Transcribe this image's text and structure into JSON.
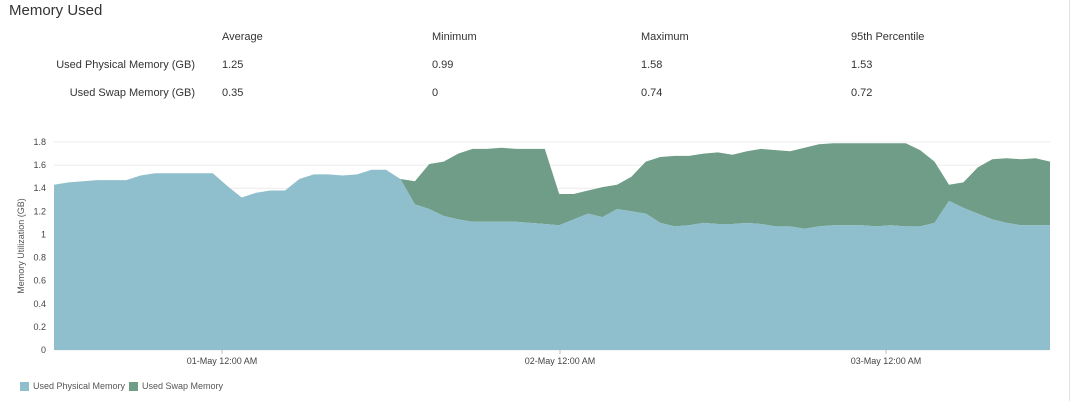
{
  "panel": {
    "title": "Memory Used"
  },
  "stats": {
    "columns": [
      "Average",
      "Minimum",
      "Maximum",
      "95th Percentile"
    ],
    "rows": [
      {
        "label": "Used Physical Memory (GB)",
        "values": [
          "1.25",
          "0.99",
          "1.58",
          "1.53"
        ]
      },
      {
        "label": "Used Swap Memory (GB)",
        "values": [
          "0.35",
          "0",
          "0.74",
          "0.72"
        ]
      }
    ]
  },
  "chart_data": {
    "type": "area",
    "stacked": true,
    "ylabel": "Memory Utilization (GB)",
    "xlabel": "",
    "ylim": [
      0,
      1.8
    ],
    "yticks": [
      "0",
      "0.2",
      "0.4",
      "0.6",
      "0.8",
      "1",
      "1.2",
      "1.4",
      "1.6",
      "1.8"
    ],
    "xticks": [
      "01-May 12:00 AM",
      "02-May 12:00 AM",
      "03-May 12:00 AM"
    ],
    "grid": true,
    "legend_position": "bottom-left",
    "x": [
      0,
      1,
      2,
      3,
      4,
      5,
      6,
      7,
      8,
      9,
      10,
      11,
      12,
      13,
      14,
      15,
      16,
      17,
      18,
      19,
      20,
      21,
      22,
      23,
      24,
      25,
      26,
      27,
      28,
      29,
      30,
      31,
      32,
      33,
      34,
      35,
      36,
      37,
      38,
      39,
      40,
      41,
      42,
      43,
      44,
      45,
      46,
      47,
      48,
      49,
      50,
      51,
      52,
      53,
      54,
      55,
      56,
      57,
      58,
      59,
      60,
      61,
      62,
      63,
      64,
      65,
      66,
      67,
      68,
      69
    ],
    "series": [
      {
        "name": "Used Physical Memory",
        "color": "#8fbfcc",
        "values": [
          1.43,
          1.45,
          1.46,
          1.47,
          1.47,
          1.47,
          1.51,
          1.53,
          1.53,
          1.53,
          1.53,
          1.53,
          1.42,
          1.32,
          1.36,
          1.38,
          1.38,
          1.48,
          1.52,
          1.52,
          1.51,
          1.52,
          1.56,
          1.56,
          1.48,
          1.26,
          1.22,
          1.16,
          1.13,
          1.11,
          1.11,
          1.11,
          1.11,
          1.1,
          1.09,
          1.08,
          1.13,
          1.18,
          1.15,
          1.22,
          1.2,
          1.18,
          1.1,
          1.07,
          1.08,
          1.1,
          1.09,
          1.09,
          1.1,
          1.09,
          1.07,
          1.07,
          1.05,
          1.07,
          1.08,
          1.08,
          1.08,
          1.07,
          1.08,
          1.07,
          1.07,
          1.1,
          1.29,
          1.23,
          1.18,
          1.13,
          1.1,
          1.08,
          1.08,
          1.08
        ]
      },
      {
        "name": "Used Swap Memory",
        "color": "#6f9d87",
        "values": [
          0,
          0,
          0,
          0,
          0,
          0,
          0,
          0,
          0,
          0,
          0,
          0,
          0,
          0,
          0,
          0,
          0,
          0,
          0,
          0,
          0,
          0,
          0,
          0,
          0,
          0.2,
          0.39,
          0.47,
          0.57,
          0.63,
          0.63,
          0.64,
          0.63,
          0.64,
          0.65,
          0.27,
          0.22,
          0.2,
          0.26,
          0.21,
          0.3,
          0.45,
          0.57,
          0.61,
          0.6,
          0.6,
          0.62,
          0.6,
          0.62,
          0.65,
          0.66,
          0.65,
          0.7,
          0.71,
          0.71,
          0.71,
          0.71,
          0.72,
          0.71,
          0.72,
          0.66,
          0.53,
          0.14,
          0.22,
          0.4,
          0.52,
          0.56,
          0.57,
          0.58,
          0.55
        ]
      }
    ]
  }
}
